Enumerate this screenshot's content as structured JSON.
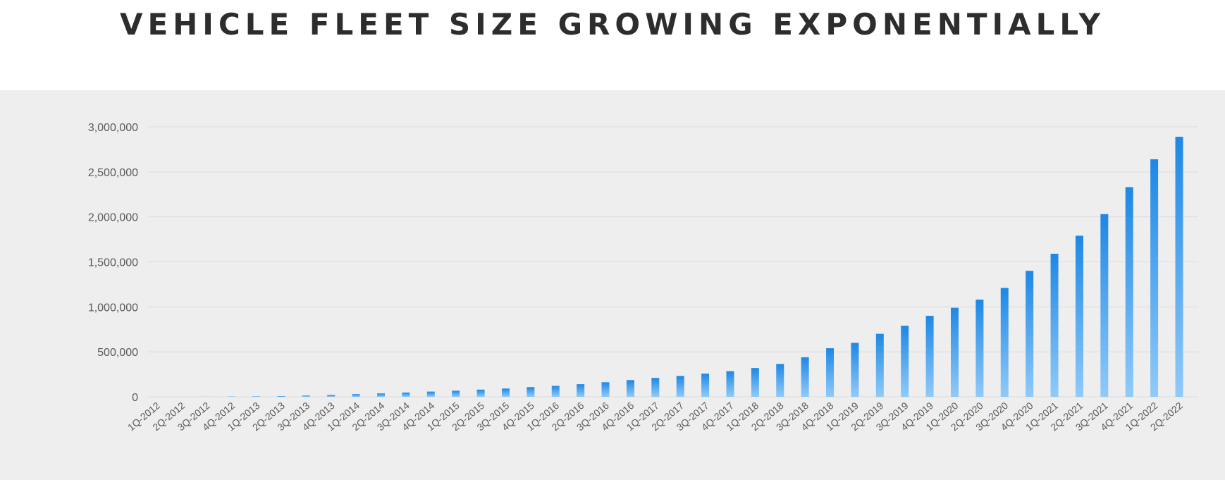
{
  "chart_data": {
    "type": "bar",
    "title": "VEHICLE FLEET SIZE GROWING EXPONENTIALLY",
    "xlabel": "",
    "ylabel": "",
    "ylim": [
      0,
      3000000
    ],
    "yticks": [
      0,
      500000,
      1000000,
      1500000,
      2000000,
      2500000,
      3000000
    ],
    "ytick_labels": [
      "0",
      "500,000",
      "1,000,000",
      "1,500,000",
      "2,000,000",
      "2,500,000",
      "3,000,000"
    ],
    "grid": true,
    "categories": [
      "1Q-2012",
      "2Q-2012",
      "3Q-2012",
      "4Q-2012",
      "1Q-2013",
      "2Q-2013",
      "3Q-2013",
      "4Q-2013",
      "1Q-2014",
      "2Q-2014",
      "3Q-2014",
      "4Q-2014",
      "1Q-2015",
      "2Q-2015",
      "3Q-2015",
      "4Q-2015",
      "1Q-2016",
      "2Q-2016",
      "3Q-2016",
      "4Q-2016",
      "1Q-2017",
      "2Q-2017",
      "3Q-2017",
      "4Q-2017",
      "1Q-2018",
      "2Q-2018",
      "3Q-2018",
      "4Q-2018",
      "1Q-2019",
      "2Q-2019",
      "3Q-2019",
      "4Q-2019",
      "1Q-2020",
      "2Q-2020",
      "3Q-2020",
      "4Q-2020",
      "1Q-2021",
      "2Q-2021",
      "3Q-2021",
      "4Q-2021",
      "1Q-2022",
      "2Q-2022"
    ],
    "values": [
      0,
      0,
      500,
      2000,
      5000,
      8000,
      14000,
      22000,
      30000,
      38000,
      48000,
      58000,
      68000,
      80000,
      92000,
      108000,
      122000,
      140000,
      162000,
      186000,
      210000,
      232000,
      258000,
      285000,
      320000,
      365000,
      440000,
      540000,
      600000,
      700000,
      790000,
      900000,
      990000,
      1080000,
      1210000,
      1400000,
      1590000,
      1790000,
      2030000,
      2330000,
      2640000,
      2890000
    ],
    "bar_color_top": "#1e88e5",
    "bar_color_bottom": "#90caf9",
    "grid_color": "#dcdcdc"
  }
}
